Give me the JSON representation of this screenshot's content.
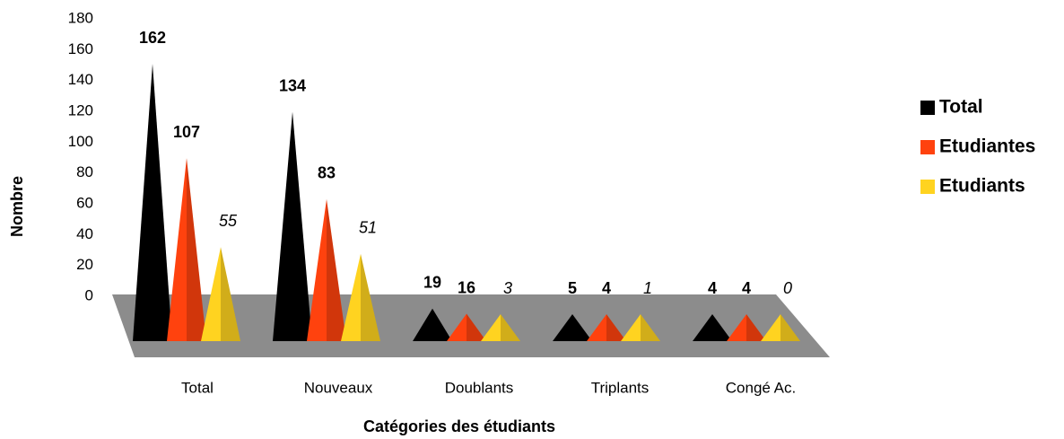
{
  "chart_data": {
    "type": "bar",
    "x_label": "Catégories des étudiants",
    "y_label": "Nombre",
    "categories": [
      "Total",
      "Nouveaux",
      "Doublants",
      "Triplants",
      "Congé Ac."
    ],
    "series": [
      {
        "name": "Total",
        "color": "#000000",
        "values": [
          162,
          134,
          19,
          5,
          4
        ]
      },
      {
        "name": "Etudiantes",
        "color": "#ff420e",
        "values": [
          107,
          83,
          16,
          4,
          4
        ]
      },
      {
        "name": "Etudiants",
        "color": "#ffd320",
        "values": [
          55,
          51,
          3,
          1,
          0
        ]
      }
    ],
    "ylim": [
      0,
      180
    ],
    "yticks": [
      0,
      20,
      40,
      60,
      80,
      100,
      120,
      140,
      160,
      180
    ],
    "legend": "right"
  }
}
